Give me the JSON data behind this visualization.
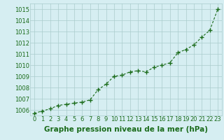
{
  "x": [
    0,
    1,
    2,
    3,
    4,
    5,
    6,
    7,
    8,
    9,
    10,
    11,
    12,
    13,
    14,
    15,
    16,
    17,
    18,
    19,
    20,
    21,
    22,
    23
  ],
  "y": [
    1005.7,
    1005.9,
    1006.1,
    1006.4,
    1006.5,
    1006.6,
    1006.7,
    1006.9,
    1007.8,
    1008.3,
    1009.0,
    1009.1,
    1009.4,
    1009.5,
    1009.4,
    1009.8,
    1010.0,
    1010.2,
    1011.1,
    1011.4,
    1011.8,
    1012.5,
    1013.1,
    1015.0
  ],
  "ylim": [
    1005.5,
    1015.5
  ],
  "yticks": [
    1006,
    1007,
    1008,
    1009,
    1010,
    1011,
    1012,
    1013,
    1014,
    1015
  ],
  "xlim": [
    -0.5,
    23.5
  ],
  "xticks": [
    0,
    1,
    2,
    3,
    4,
    5,
    6,
    7,
    8,
    9,
    10,
    11,
    12,
    13,
    14,
    15,
    16,
    17,
    18,
    19,
    20,
    21,
    22,
    23
  ],
  "line_color": "#1a6b1a",
  "marker": "+",
  "marker_color": "#1a6b1a",
  "bg_color": "#d6eef2",
  "grid_color": "#aacccc",
  "xlabel": "Graphe pression niveau de la mer (hPa)",
  "xlabel_color": "#1a6b1a",
  "tick_color": "#1a6b1a",
  "xlabel_fontsize": 7.5,
  "tick_fontsize": 6.0,
  "line_width": 0.8,
  "marker_size": 4,
  "marker_edge_width": 1.0
}
